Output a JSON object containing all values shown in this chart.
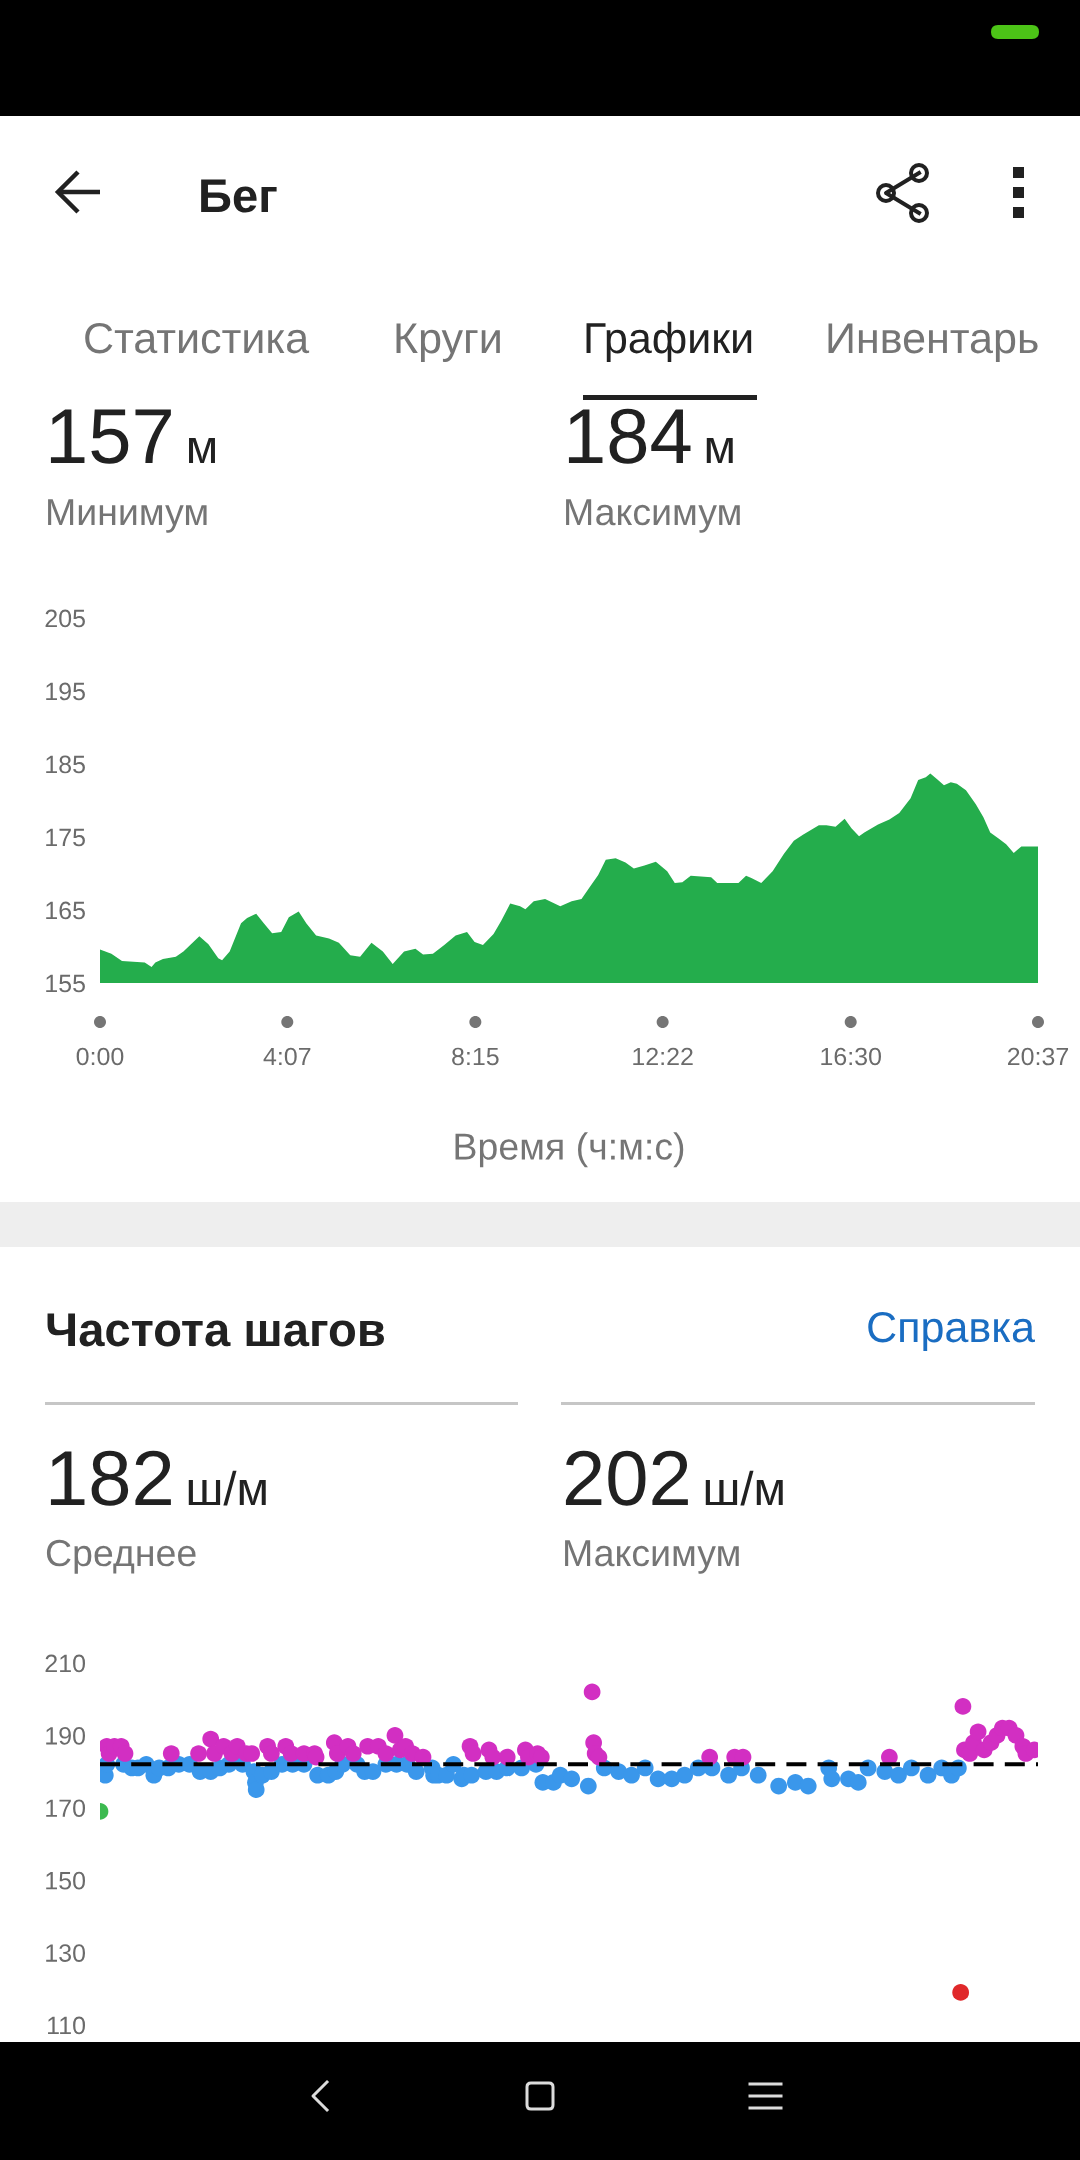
{
  "chart_data": [
    {
      "type": "area",
      "title": "Бег",
      "annotations": [
        "Статистика",
        "Круги",
        "Графики",
        "Инвентарь",
        "157",
        "м",
        "Минимум",
        "184",
        "м",
        "Максимум"
      ],
      "xlabel": "Время (ч:м:с)",
      "x": [
        0,
        15,
        29,
        59,
        68,
        73,
        83,
        100,
        110,
        131,
        143,
        156,
        161,
        171,
        186,
        194,
        206,
        216,
        227,
        239,
        249,
        262,
        272,
        285,
        302,
        315,
        330,
        343,
        358,
        373,
        386,
        401,
        416,
        426,
        439,
        454,
        469,
        484,
        494,
        505,
        519,
        529,
        541,
        554,
        561,
        572,
        587,
        607,
        622,
        635,
        645,
        657,
        667,
        680,
        693,
        704,
        718,
        733,
        748,
        758,
        768,
        779,
        806,
        814,
        842,
        852,
        859,
        872,
        887,
        902,
        915,
        927,
        948,
        958,
        970,
        982,
        991,
        1001,
        1008,
        1026,
        1041,
        1054,
        1069,
        1079,
        1089,
        1095,
        1104,
        1113,
        1122,
        1130,
        1142,
        1155,
        1165,
        1174,
        1185,
        1195,
        1205,
        1215,
        1237
      ],
      "values": [
        159.6,
        159.0,
        158.0,
        157.8,
        157.2,
        157.8,
        158.3,
        158.6,
        159.3,
        161.4,
        160.3,
        158.4,
        158.1,
        159.3,
        163.2,
        163.9,
        164.5,
        163.2,
        161.8,
        162.0,
        164.0,
        164.8,
        163.2,
        161.5,
        161.1,
        160.5,
        158.8,
        158.6,
        160.5,
        159.3,
        157.6,
        159.3,
        159.7,
        158.9,
        159.0,
        160.2,
        161.5,
        162.0,
        160.6,
        160.2,
        161.7,
        163.5,
        165.9,
        165.5,
        165.1,
        166.2,
        166.5,
        165.5,
        166.2,
        166.5,
        168.0,
        169.8,
        171.9,
        172.1,
        171.5,
        170.7,
        171.1,
        171.6,
        170.3,
        168.7,
        168.8,
        169.7,
        169.5,
        168.7,
        168.7,
        169.7,
        169.4,
        168.7,
        170.3,
        172.7,
        174.5,
        175.3,
        176.6,
        176.6,
        176.4,
        177.5,
        176.2,
        175.1,
        175.6,
        176.7,
        177.4,
        178.3,
        180.3,
        182.8,
        183.2,
        183.7,
        182.9,
        182.1,
        182.5,
        182.3,
        181.4,
        179.5,
        177.7,
        175.6,
        174.8,
        174.0,
        172.8,
        173.7,
        173.7
      ],
      "color": "#24ad4c",
      "xlim": [
        0,
        1237
      ],
      "ylim": [
        155,
        205
      ],
      "xticks": [
        {
          "value": 0,
          "label": "0:00"
        },
        {
          "value": 247,
          "label": "4:07"
        },
        {
          "value": 495,
          "label": "8:15"
        },
        {
          "value": 742,
          "label": "12:22"
        },
        {
          "value": 990,
          "label": "16:30"
        },
        {
          "value": 1237,
          "label": "20:37"
        }
      ],
      "yticks": [
        155,
        165,
        175,
        185,
        195,
        205
      ]
    },
    {
      "type": "scatter",
      "title": "Частота шагов",
      "annotations": [
        "Справка",
        "182",
        "ш/м",
        "Среднее",
        "202",
        "ш/м",
        "Максимум"
      ],
      "series": [
        {
          "color": "#3a97eb",
          "x": [
            7,
            9,
            31,
            42,
            50,
            61,
            71,
            78,
            90,
            104,
            118,
            132,
            146,
            158,
            170,
            188,
            203,
            205,
            206,
            214,
            226,
            240,
            254,
            269,
            287,
            301,
            311,
            320,
            339,
            349,
            360,
            377,
            391,
            405,
            417,
            438,
            440,
            446,
            457,
            466,
            477,
            480,
            490,
            509,
            523,
            537,
            556,
            575,
            584,
            598,
            607,
            622,
            644,
            665,
            684,
            701,
            719,
            736,
            754,
            771,
            789,
            807,
            829,
            846,
            868,
            895,
            917,
            934,
            961,
            965,
            987,
            1000,
            1013,
            1035,
            1053,
            1070,
            1092,
            1110,
            1123,
            1132
          ],
          "values": [
            179,
            182,
            182,
            181,
            181,
            182,
            179,
            181,
            181,
            182,
            182,
            180,
            180,
            181,
            182,
            182,
            180,
            177,
            175,
            179,
            180,
            182,
            182,
            182,
            179,
            179,
            180,
            182,
            182,
            180,
            180,
            182,
            182,
            182,
            180,
            181,
            179,
            179,
            179,
            182,
            178,
            179,
            179,
            180,
            180,
            181,
            181,
            182,
            177,
            177,
            179,
            178,
            176,
            181,
            180,
            179,
            181,
            178,
            178,
            179,
            181,
            181,
            179,
            181,
            179,
            176,
            177,
            176,
            181,
            178,
            178,
            177,
            181,
            180,
            179,
            181,
            179,
            181,
            179,
            181
          ]
        },
        {
          "color": "#d22fc2",
          "x": [
            9,
            12,
            19,
            28,
            33,
            94,
            130,
            146,
            151,
            163,
            174,
            181,
            193,
            200,
            221,
            226,
            245,
            252,
            269,
            283,
            285,
            309,
            313,
            327,
            334,
            353,
            367,
            377,
            389,
            396,
            403,
            412,
            426,
            488,
            492,
            513,
            518,
            537,
            561,
            565,
            577,
            582,
            649,
            651,
            653,
            658,
            804,
            837,
            848,
            1041,
            1138,
            1140,
            1147,
            1152,
            1158,
            1166,
            1175,
            1183,
            1190,
            1199,
            1208,
            1217,
            1221,
            1232
          ],
          "values": [
            187,
            185,
            187,
            187,
            185,
            185,
            185,
            189,
            185,
            187,
            185,
            187,
            185,
            185,
            187,
            185,
            187,
            185,
            185,
            185,
            184,
            188,
            185,
            187,
            185,
            187,
            187,
            185,
            190,
            186,
            187,
            185,
            184,
            187,
            185,
            186,
            184,
            184,
            186,
            184,
            185,
            184,
            202,
            188,
            185,
            184,
            184,
            184,
            184,
            184,
            198,
            186,
            185,
            188,
            191,
            186,
            188,
            190,
            192,
            192,
            190,
            187,
            185,
            186
          ]
        },
        {
          "color": "#3cba50",
          "x": [
            0
          ],
          "values": [
            169
          ]
        },
        {
          "color": "#e0282a",
          "x": [
            1135
          ],
          "values": [
            119
          ]
        }
      ],
      "marker": "circle",
      "xlim": [
        0,
        1237
      ],
      "ylim": [
        110,
        210
      ],
      "yticks": [
        110,
        130,
        150,
        170,
        190,
        210
      ],
      "tick_labels": "y",
      "ref_lines": [
        {
          "axis": "y",
          "value": 182,
          "color": "#000000",
          "line_style": "dashed"
        }
      ]
    }
  ]
}
